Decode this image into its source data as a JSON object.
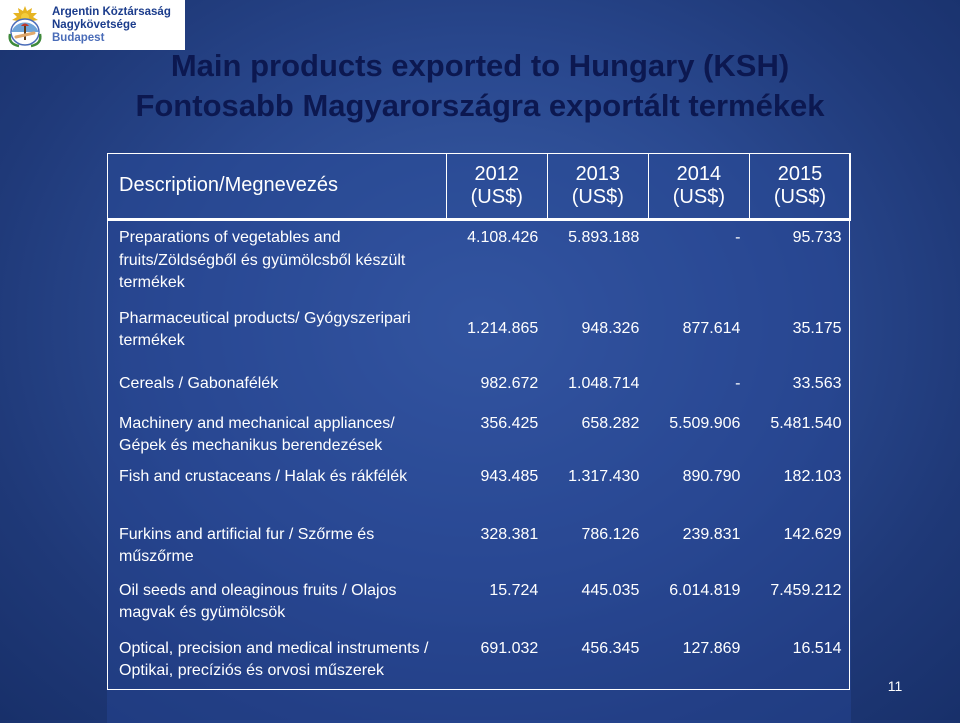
{
  "logo": {
    "line1": "Argentin Köztársaság",
    "line2": "Nagykövetsége",
    "line3": "Budapest",
    "seal_color": "#6fa4d8"
  },
  "title": {
    "line1": "Main products exported to Hungary (KSH)",
    "line2": "Fontosabb Magyarországra exportált termékek"
  },
  "table": {
    "header": {
      "description": "Description/Megnevezés",
      "years": [
        {
          "year": "2012",
          "unit": "(US$)"
        },
        {
          "year": "2013",
          "unit": "(US$)"
        },
        {
          "year": "2014",
          "unit": "(US$)"
        },
        {
          "year": "2015",
          "unit": "(US$)"
        }
      ]
    },
    "rows": [
      {
        "description": "Preparations of vegetables and fruits/Zöldségből és gyümölcsből készült termékek",
        "v2012": "4.108.426",
        "v2013": "5.893.188",
        "v2014": "-",
        "v2015": "95.733"
      },
      {
        "description": "Pharmaceutical products/ Gyógyszeripari termékek",
        "v2012": "1.214.865",
        "v2013": "948.326",
        "v2014": "877.614",
        "v2015": "35.175"
      },
      {
        "description": "Cereals / Gabonafélék",
        "v2012": "982.672",
        "v2013": "1.048.714",
        "v2014": "-",
        "v2015": "33.563"
      },
      {
        "description": "Machinery and mechanical appliances/ Gépek és mechanikus berendezések",
        "v2012": "356.425",
        "v2013": "658.282",
        "v2014": "5.509.906",
        "v2015": "5.481.540"
      },
      {
        "description": "Fish and crustaceans / Halak és rákfélék",
        "v2012": "943.485",
        "v2013": "1.317.430",
        "v2014": "890.790",
        "v2015": "182.103"
      },
      {
        "description": "Furkins and artificial fur / Szőrme és műszőrme",
        "v2012": "328.381",
        "v2013": "786.126",
        "v2014": "239.831",
        "v2015": "142.629"
      },
      {
        "description": "Oil seeds and oleaginous fruits / Olajos magvak és gyümölcsök",
        "v2012": "15.724",
        "v2013": "445.035",
        "v2014": "6.014.819",
        "v2015": "7.459.212"
      },
      {
        "description": "Optical, precision and medical instruments / Optikai, precíziós és orvosi műszerek",
        "v2012": "691.032",
        "v2013": "456.345",
        "v2014": "127.869",
        "v2015": "16.514"
      }
    ]
  },
  "page_number": "11"
}
